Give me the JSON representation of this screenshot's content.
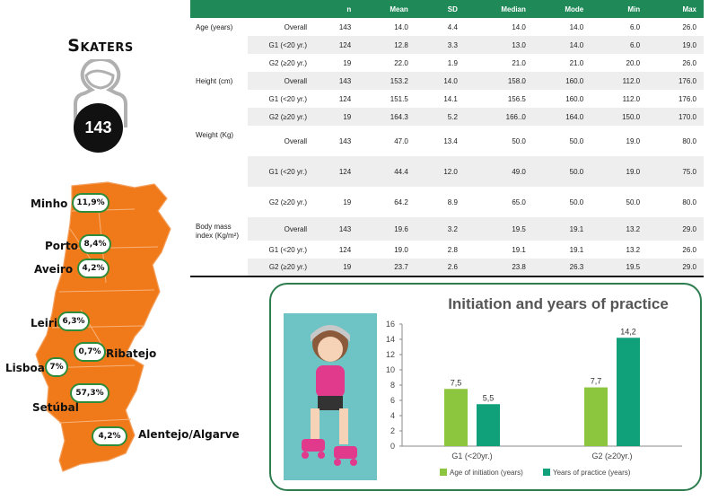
{
  "skaters": {
    "title": "Skaters",
    "count": "143"
  },
  "table": {
    "headers": [
      "",
      "",
      "n",
      "Mean",
      "SD",
      "Median",
      "Mode",
      "Min",
      "Max"
    ],
    "rows": [
      {
        "var": "Age (years)",
        "group": "Overall",
        "n": "143",
        "mean": "14.0",
        "sd": "4.4",
        "median": "14.0",
        "mode": "14.0",
        "min": "6.0",
        "max": "26.0"
      },
      {
        "var": "",
        "group": "G1 (<20 yr.)",
        "n": "124",
        "mean": "12.8",
        "sd": "3.3",
        "median": "13.0",
        "mode": "14.0",
        "min": "6.0",
        "max": "19.0"
      },
      {
        "var": "",
        "group": "G2 (≥20 yr.)",
        "n": "19",
        "mean": "22.0",
        "sd": "1.9",
        "median": "21.0",
        "mode": "21.0",
        "min": "20.0",
        "max": "26.0"
      },
      {
        "var": "Height (cm)",
        "group": "Overall",
        "n": "143",
        "mean": "153.2",
        "sd": "14.0",
        "median": "158.0",
        "mode": "160.0",
        "min": "112.0",
        "max": "176.0"
      },
      {
        "var": "",
        "group": "G1 (<20 yr.)",
        "n": "124",
        "mean": "151.5",
        "sd": "14.1",
        "median": "156.5",
        "mode": "160.0",
        "min": "112.0",
        "max": "176.0"
      },
      {
        "var": "",
        "group": "G2 (≥20 yr.)",
        "n": "19",
        "mean": "164.3",
        "sd": "5.2",
        "median": "166..0",
        "mode": "164.0",
        "min": "150.0",
        "max": "170.0"
      },
      {
        "var": "Weight (Kg)",
        "group": "Overall",
        "n": "143",
        "mean": "47.0",
        "sd": "13.4",
        "median": "50.0",
        "mode": "50.0",
        "min": "19.0",
        "max": "80.0"
      },
      {
        "var": "",
        "group": "G1 (<20 yr.)",
        "n": "124",
        "mean": "44.4",
        "sd": "12.0",
        "median": "49.0",
        "mode": "50.0",
        "min": "19.0",
        "max": "75.0"
      },
      {
        "var": "",
        "group": "G2 (≥20 yr.)",
        "n": "19",
        "mean": "64.2",
        "sd": "8.9",
        "median": "65.0",
        "mode": "50.0",
        "min": "50.0",
        "max": "80.0"
      },
      {
        "var": "Body mass index (Kg/m²)",
        "group": "Overall",
        "n": "143",
        "mean": "19.6",
        "sd": "3.2",
        "median": "19.5",
        "mode": "19.1",
        "min": "13.2",
        "max": "29.0"
      },
      {
        "var": "",
        "group": "G1 (<20 yr.)",
        "n": "124",
        "mean": "19.0",
        "sd": "2.8",
        "median": "19.1",
        "mode": "19.1",
        "min": "13.2",
        "max": "26.0"
      },
      {
        "var": "",
        "group": "G2 (≥20 yr.)",
        "n": "19",
        "mean": "23.7",
        "sd": "2.6",
        "median": "23.8",
        "mode": "26.3",
        "min": "19.5",
        "max": "29.0"
      }
    ]
  },
  "map": {
    "regions": [
      {
        "name": "Minho",
        "pct": "11,9%"
      },
      {
        "name": "Porto",
        "pct": "8,4%"
      },
      {
        "name": "Aveiro",
        "pct": "4,2%"
      },
      {
        "name": "Leiria",
        "pct": "6,3%"
      },
      {
        "name": "Ribatejo",
        "pct": "0,7%"
      },
      {
        "name": "Lisboa",
        "pct": "7%"
      },
      {
        "name": "Setúbal",
        "pct": "57,3%"
      },
      {
        "name": "Alentejo/Algarve",
        "pct": "4,2%"
      }
    ],
    "fill_color": "#f07a1a"
  },
  "chart_data": {
    "type": "bar",
    "title": "Initiation and years of practice",
    "categories": [
      "G1 (<20yr.)",
      "G2 (≥20yr.)"
    ],
    "series": [
      {
        "name": "Age of initiation (years)",
        "values": [
          7.5,
          7.7
        ],
        "labels": [
          "7,5",
          "7,7"
        ],
        "color": "#8cc63f"
      },
      {
        "name": "Years of practice (years)",
        "values": [
          5.5,
          14.2
        ],
        "labels": [
          "5,5",
          "14,2"
        ],
        "color": "#10a07a"
      }
    ],
    "ylim": [
      0,
      16
    ],
    "yticks": [
      0,
      2,
      4,
      6,
      8,
      10,
      12,
      14,
      16
    ],
    "grid": false,
    "legend": "bottom"
  }
}
